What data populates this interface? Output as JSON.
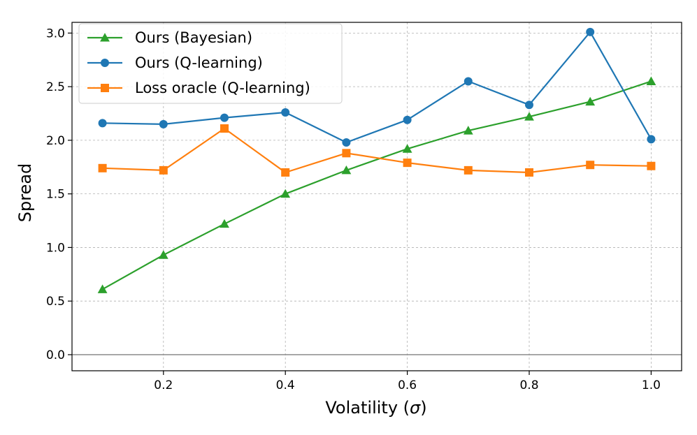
{
  "chart_data": {
    "type": "line",
    "title": "",
    "xlabel": "Volatility (",
    "xlabel_symbol": "σ",
    "xlabel_suffix": ")",
    "ylabel": "Spread",
    "xlim": [
      0.05,
      1.05
    ],
    "ylim": [
      -0.15,
      3.1
    ],
    "xticks": [
      0.2,
      0.4,
      0.6,
      0.8,
      1.0
    ],
    "xtick_labels": [
      "0.2",
      "0.4",
      "0.6",
      "0.8",
      "1.0"
    ],
    "yticks": [
      0.0,
      0.5,
      1.0,
      1.5,
      2.0,
      2.5,
      3.0
    ],
    "ytick_labels": [
      "0.0",
      "0.5",
      "1.0",
      "1.5",
      "2.0",
      "2.5",
      "3.0"
    ],
    "grid": true,
    "legend_position": "top-left",
    "x": [
      0.1,
      0.2,
      0.3,
      0.4,
      0.5,
      0.6,
      0.7,
      0.8,
      0.9,
      1.0
    ],
    "series": [
      {
        "name": "Ours (Bayesian)",
        "color": "#2ca02c",
        "marker": "triangle",
        "values": [
          0.61,
          0.93,
          1.22,
          1.5,
          1.72,
          1.92,
          2.09,
          2.22,
          2.36,
          2.55
        ]
      },
      {
        "name": "Ours (Q-learning)",
        "color": "#1f77b4",
        "marker": "circle",
        "values": [
          2.16,
          2.15,
          2.21,
          2.26,
          1.98,
          2.19,
          2.55,
          2.33,
          3.01,
          2.01
        ]
      },
      {
        "name": "Loss oracle (Q-learning)",
        "color": "#ff7f0e",
        "marker": "square",
        "values": [
          1.74,
          1.72,
          2.11,
          1.7,
          1.88,
          1.79,
          1.72,
          1.7,
          1.77,
          1.76
        ]
      }
    ],
    "zero_line_color": "#808080"
  }
}
